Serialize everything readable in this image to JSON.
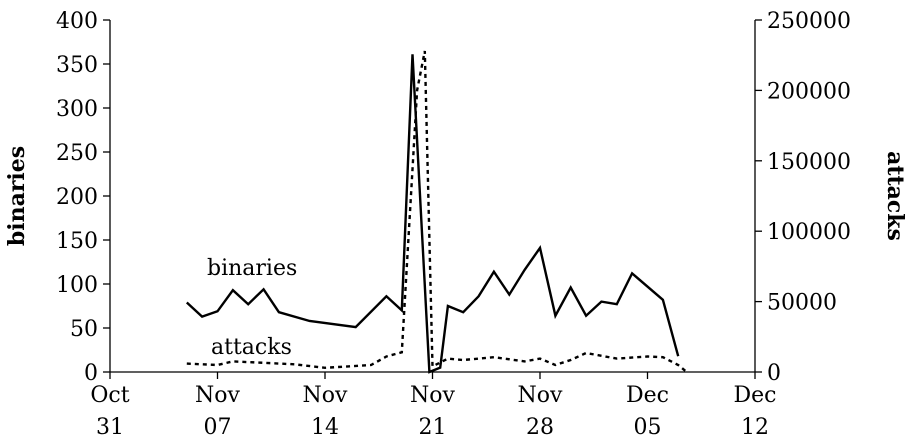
{
  "chart_data": {
    "type": "line",
    "x_type": "date",
    "x_ticks": [
      {
        "date": "10-31",
        "line1": "Oct",
        "line2": "31"
      },
      {
        "date": "11-07",
        "line1": "Nov",
        "line2": "07"
      },
      {
        "date": "11-14",
        "line1": "Nov",
        "line2": "14"
      },
      {
        "date": "11-21",
        "line1": "Nov",
        "line2": "21"
      },
      {
        "date": "11-28",
        "line1": "Nov",
        "line2": "28"
      },
      {
        "date": "12-05",
        "line1": "Dec",
        "line2": "05"
      },
      {
        "date": "12-12",
        "line1": "Dec",
        "line2": "12"
      }
    ],
    "xlim": [
      "10-31",
      "12-12"
    ],
    "y_left": {
      "label": "binaries",
      "ylim": [
        0,
        400
      ],
      "ticks": [
        0,
        50,
        100,
        150,
        200,
        250,
        300,
        350,
        400
      ]
    },
    "y_right": {
      "label": "attacks",
      "ylim": [
        0,
        250000
      ],
      "ticks": [
        0,
        50000,
        100000,
        150000,
        200000,
        250000
      ]
    },
    "series": [
      {
        "name": "binaries",
        "axis": "left",
        "style": "solid",
        "points": [
          [
            "11-05",
            79
          ],
          [
            "11-06",
            63
          ],
          [
            "11-07",
            69
          ],
          [
            "11-08",
            93
          ],
          [
            "11-09",
            77
          ],
          [
            "11-10",
            94
          ],
          [
            "11-11",
            68
          ],
          [
            "11-13",
            58
          ],
          [
            "11-16",
            51
          ],
          [
            "11-18",
            86
          ],
          [
            "11-19",
            70
          ],
          [
            "11-19.7",
            361
          ],
          [
            "11-20.8",
            0
          ],
          [
            "11-21.5",
            5
          ],
          [
            "11-22",
            75
          ],
          [
            "11-23",
            68
          ],
          [
            "11-24",
            86
          ],
          [
            "11-25",
            114
          ],
          [
            "11-26",
            88
          ],
          [
            "11-27",
            116
          ],
          [
            "11-28",
            141
          ],
          [
            "11-29",
            64
          ],
          [
            "11-30",
            96
          ],
          [
            "12-01",
            64
          ],
          [
            "12-02",
            80
          ],
          [
            "12-03",
            77
          ],
          [
            "12-04",
            112
          ],
          [
            "12-06",
            82
          ],
          [
            "12-07",
            18
          ]
        ]
      },
      {
        "name": "attacks",
        "axis": "right",
        "style": "dashed",
        "points": [
          [
            "11-05",
            6000
          ],
          [
            "11-07",
            5000
          ],
          [
            "11-08",
            7500
          ],
          [
            "11-10",
            6500
          ],
          [
            "11-12",
            5500
          ],
          [
            "11-14",
            3000
          ],
          [
            "11-17",
            5000
          ],
          [
            "11-18",
            11000
          ],
          [
            "11-19",
            14000
          ],
          [
            "11-20",
            200000
          ],
          [
            "11-20.5",
            228000
          ],
          [
            "11-21",
            4000
          ],
          [
            "11-22",
            9500
          ],
          [
            "11-23",
            8500
          ],
          [
            "11-25",
            10500
          ],
          [
            "11-27",
            7500
          ],
          [
            "11-28",
            9500
          ],
          [
            "11-29",
            5000
          ],
          [
            "11-30",
            8500
          ],
          [
            "12-01",
            13500
          ],
          [
            "12-03",
            9500
          ],
          [
            "12-05",
            11000
          ],
          [
            "12-06",
            10500
          ],
          [
            "12-07",
            5000
          ],
          [
            "12-07.5",
            500
          ]
        ]
      }
    ],
    "annotations": [
      {
        "text": "binaries",
        "series": "binaries"
      },
      {
        "text": "attacks",
        "series": "attacks"
      }
    ],
    "grid": false
  }
}
